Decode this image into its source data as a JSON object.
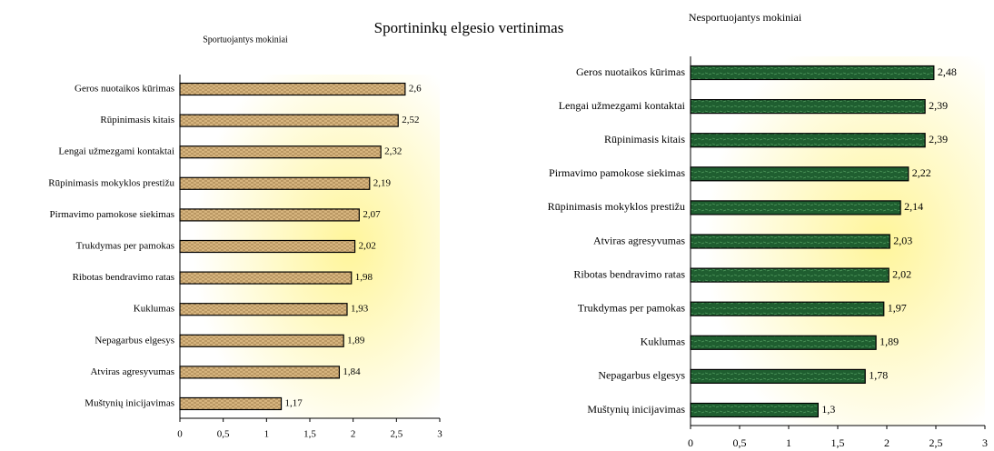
{
  "title": "Sportininkų elgesio vertinimas",
  "chart_data": [
    {
      "type": "bar",
      "subtitle": "Sportuojantys mokiniai",
      "color": "#d6b47e",
      "categories": [
        "Geros nuotaikos kūrimas",
        "Rūpinimasis kitais",
        "Lengai užmezgami kontaktai",
        "Rūpinimasis mokyklos prestižu",
        "Pirmavimo pamokose siekimas",
        "Trukdymas per pamokas",
        "Ribotas bendravimo ratas",
        "Kuklumas",
        "Nepagarbus elgesys",
        "Atviras agresyvumas",
        "Muštynių inicijavimas"
      ],
      "values": [
        2.6,
        2.52,
        2.32,
        2.19,
        2.07,
        2.02,
        1.98,
        1.93,
        1.89,
        1.84,
        1.17
      ],
      "value_labels": [
        "2,6",
        "2,52",
        "2,32",
        "2,19",
        "2,07",
        "2,02",
        "1,98",
        "1,93",
        "1,89",
        "1,84",
        "1,17"
      ],
      "xlim": [
        0,
        3
      ],
      "xticks": [
        0,
        {
          "value": 0.5,
          "label": "0,5"
        },
        1,
        {
          "value": 1.5,
          "label": "1,5"
        },
        2,
        {
          "value": 2.5,
          "label": "2,5"
        },
        3
      ]
    },
    {
      "type": "bar",
      "subtitle": "Nesportuojantys mokiniai",
      "color": "#1f5e30",
      "categories": [
        "Geros nuotaikos kūrimas",
        "Lengai užmezgami kontaktai",
        "Rūpinimasis kitais",
        "Pirmavimo pamokose siekimas",
        "Rūpinimasis mokyklos prestižu",
        "Atviras agresyvumas",
        "Ribotas bendravimo ratas",
        "Trukdymas per pamokas",
        "Kuklumas",
        "Nepagarbus elgesys",
        "Muštynių inicijavimas"
      ],
      "values": [
        2.48,
        2.39,
        2.39,
        2.22,
        2.14,
        2.03,
        2.02,
        1.97,
        1.89,
        1.78,
        1.3
      ],
      "value_labels": [
        "2,48",
        "2,39",
        "2,39",
        "2,22",
        "2,14",
        "2,03",
        "2,02",
        "1,97",
        "1,89",
        "1,78",
        "1,3"
      ],
      "xlim": [
        0,
        3
      ],
      "xticks": [
        0,
        {
          "value": 0.5,
          "label": "0,5"
        },
        1,
        {
          "value": 1.5,
          "label": "1,5"
        },
        2,
        {
          "value": 2.5,
          "label": "2,5"
        },
        3
      ]
    }
  ]
}
